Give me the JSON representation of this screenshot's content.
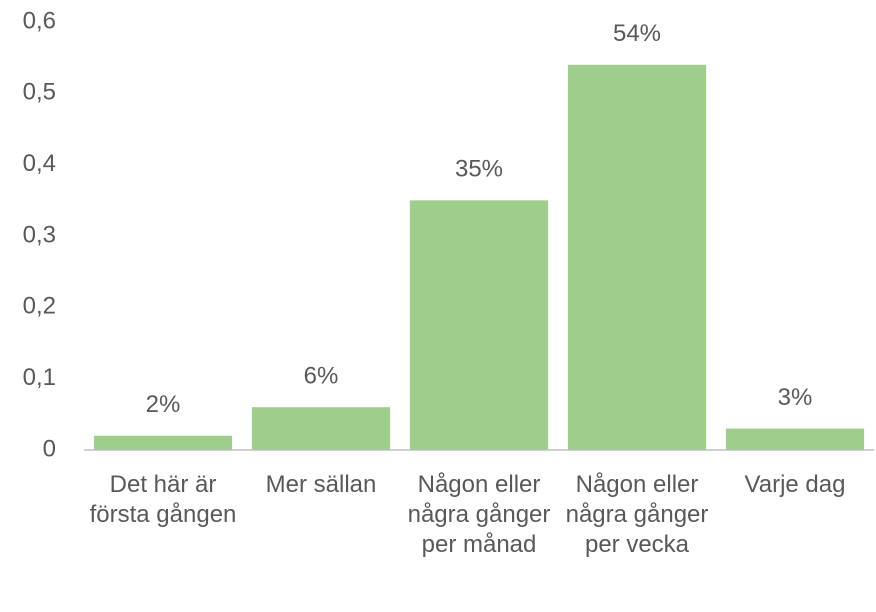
{
  "chart_data": {
    "type": "bar",
    "categories": [
      "Det här är första gången",
      "Mer sällan",
      "Någon eller några gånger per månad",
      "Någon eller några gånger per vecka",
      "Varje dag"
    ],
    "values": [
      0.02,
      0.06,
      0.35,
      0.54,
      0.03
    ],
    "value_labels": [
      "2%",
      "6%",
      "35%",
      "54%",
      "3%"
    ],
    "color": "#9fce8c",
    "ylim": [
      0,
      0.6
    ],
    "yticks": [
      0,
      {
        "value": 0.1,
        "label": "0,1"
      },
      {
        "value": 0.2,
        "label": "0,2"
      },
      {
        "value": 0.3,
        "label": "0,3"
      },
      {
        "value": 0.4,
        "label": "0,4"
      },
      {
        "value": 0.5,
        "label": "0,5"
      },
      {
        "value": 0.6,
        "label": "0,6"
      }
    ],
    "grid": false
  }
}
